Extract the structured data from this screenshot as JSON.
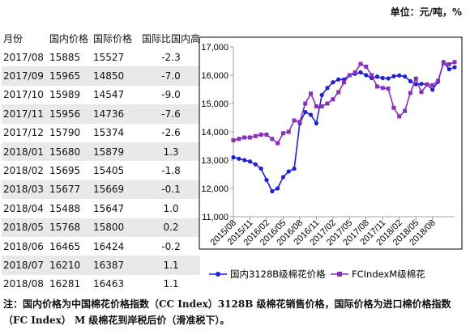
{
  "unit_label": "单位：元/吨，%",
  "table": {
    "headers": [
      "月份",
      "国内价格",
      "国际价格",
      "国际比国内高"
    ],
    "rows": [
      [
        "2017/08",
        "15885",
        "15527",
        "-2.3"
      ],
      [
        "2017/09",
        "15965",
        "14850",
        "-7.0"
      ],
      [
        "2017/10",
        "15989",
        "14547",
        "-9.0"
      ],
      [
        "2017/11",
        "15956",
        "14736",
        "-7.6"
      ],
      [
        "2017/12",
        "15790",
        "15374",
        "-2.6"
      ],
      [
        "2018/01",
        "15680",
        "15879",
        "1.3"
      ],
      [
        "2018/02",
        "15695",
        "15405",
        "-1.8"
      ],
      [
        "2018/03",
        "15677",
        "15669",
        "-0.1"
      ],
      [
        "2018/04",
        "15488",
        "15647",
        "1.0"
      ],
      [
        "2018/05",
        "15768",
        "15800",
        "0.2"
      ],
      [
        "2018/06",
        "16465",
        "16424",
        "-0.2"
      ],
      [
        "2018/07",
        "16210",
        "16387",
        "1.1"
      ],
      [
        "2018/08",
        "16281",
        "16463",
        "1.1"
      ]
    ]
  },
  "chart_data": {
    "type": "line",
    "x_ticks": [
      "2015/08",
      "2015/11",
      "2016/02",
      "2016/05",
      "2016/08",
      "2016/11",
      "2017/02",
      "2017/05",
      "2017/08",
      "2017/11",
      "2018/02",
      "2018/05",
      "2018/08"
    ],
    "ylim": [
      11000,
      17000
    ],
    "yticks": [
      "11,000",
      "12,000",
      "13,000",
      "14,000",
      "15,000",
      "16,000",
      "17,000"
    ],
    "grid": false,
    "legend_position": "bottom",
    "series": [
      {
        "name": "国内3128B级棉花价格",
        "color": "#1f1fd6",
        "marker": "circle",
        "values": [
          13100,
          13050,
          13000,
          12950,
          12850,
          12700,
          12300,
          11900,
          12000,
          12400,
          12600,
          12700,
          14300,
          14700,
          14600,
          14300,
          15300,
          15550,
          15750,
          15850,
          15850,
          16000,
          16050,
          16100,
          16000,
          15900,
          15950,
          15900,
          15885,
          15965,
          15989,
          15956,
          15790,
          15680,
          15695,
          15677,
          15488,
          15768,
          16465,
          16210,
          16281
        ]
      },
      {
        "name": "FCIndexM级棉花",
        "color": "#8a2fb8",
        "marker": "square",
        "values": [
          13700,
          13750,
          13800,
          13800,
          13850,
          13900,
          13900,
          13750,
          13600,
          13950,
          14000,
          14400,
          14350,
          15000,
          15350,
          14900,
          14900,
          15000,
          15150,
          15400,
          15750,
          16000,
          16100,
          16400,
          16300,
          16000,
          15600,
          15550,
          15527,
          14850,
          14547,
          14736,
          15374,
          15879,
          15405,
          15669,
          15647,
          15800,
          16424,
          16387,
          16463
        ]
      }
    ]
  },
  "note": "注：国内价格为中国棉花价格指数（CC Index）3128B 级棉花销售价格，国际价格为进口棉价格指数（FC Index） M 级棉花到岸税后价（滑准税下）。",
  "colors": {
    "domestic": "#1f1fd6",
    "international": "#8a2fb8",
    "row_shade": "#e9e9e9"
  }
}
